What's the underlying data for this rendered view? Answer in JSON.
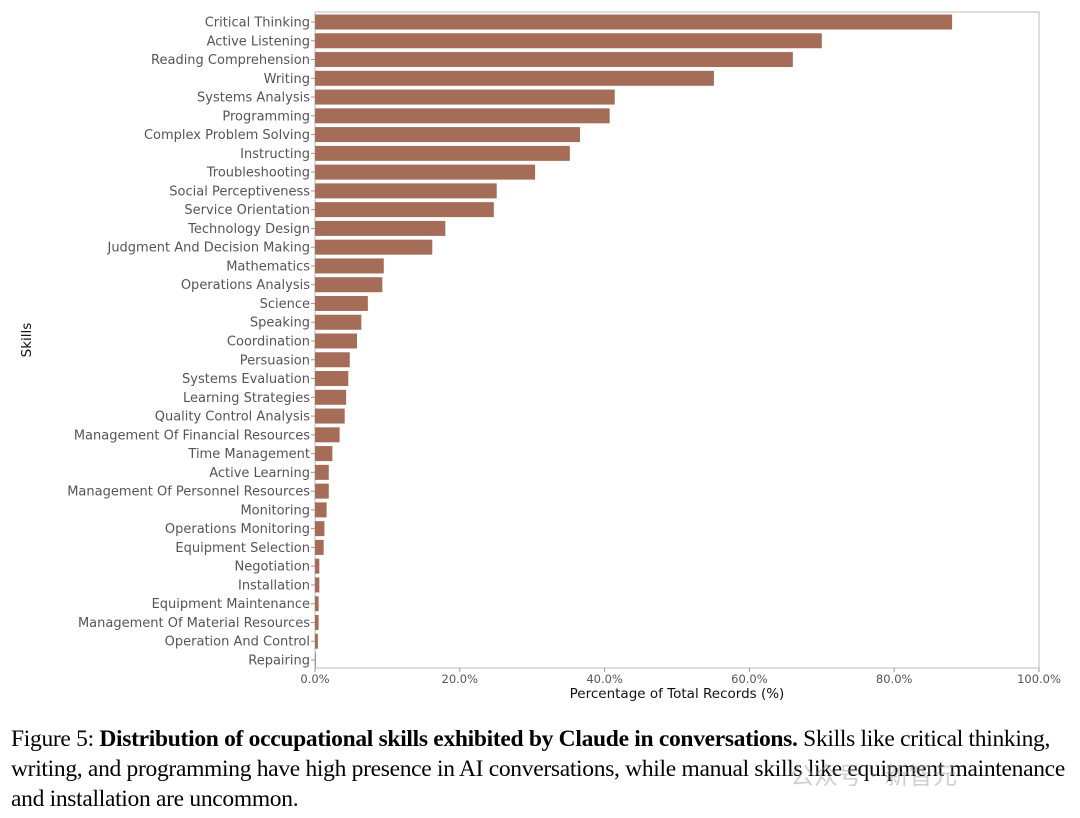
{
  "chart_data": {
    "type": "bar",
    "orientation": "horizontal",
    "xlabel": "Percentage of Total Records (%)",
    "ylabel": "Skills",
    "xlim": [
      0,
      100
    ],
    "xticks": [
      "0.0%",
      "20.0%",
      "40.0%",
      "60.0%",
      "80.0%",
      "100.0%"
    ],
    "grid": false,
    "bar_color": "#A56C57",
    "categories": [
      "Critical Thinking",
      "Active Listening",
      "Reading Comprehension",
      "Writing",
      "Systems Analysis",
      "Programming",
      "Complex Problem Solving",
      "Instructing",
      "Troubleshooting",
      "Social Perceptiveness",
      "Service Orientation",
      "Technology Design",
      "Judgment And Decision Making",
      "Mathematics",
      "Operations Analysis",
      "Science",
      "Speaking",
      "Coordination",
      "Persuasion",
      "Systems Evaluation",
      "Learning Strategies",
      "Quality Control Analysis",
      "Management Of Financial Resources",
      "Time Management",
      "Active Learning",
      "Management Of Personnel Resources",
      "Monitoring",
      "Operations Monitoring",
      "Equipment Selection",
      "Negotiation",
      "Installation",
      "Equipment Maintenance",
      "Management Of Material Resources",
      "Operation And Control",
      "Repairing"
    ],
    "values": [
      88.0,
      70.0,
      66.0,
      55.1,
      41.4,
      40.7,
      36.6,
      35.2,
      30.4,
      25.1,
      24.7,
      18.0,
      16.2,
      9.5,
      9.3,
      7.3,
      6.4,
      5.8,
      4.8,
      4.6,
      4.3,
      4.1,
      3.4,
      2.4,
      1.9,
      1.9,
      1.6,
      1.3,
      1.2,
      0.6,
      0.6,
      0.5,
      0.5,
      0.4,
      0.1
    ]
  },
  "caption": {
    "prefix": "Figure 5: ",
    "bold": "Distribution of occupational skills exhibited by Claude in conversations.",
    "rest": " Skills like critical thinking, writing, and programming have high presence in AI conversations, while manual skills like equipment maintenance and installation are uncommon."
  },
  "watermark": "公众号 · 新智元"
}
